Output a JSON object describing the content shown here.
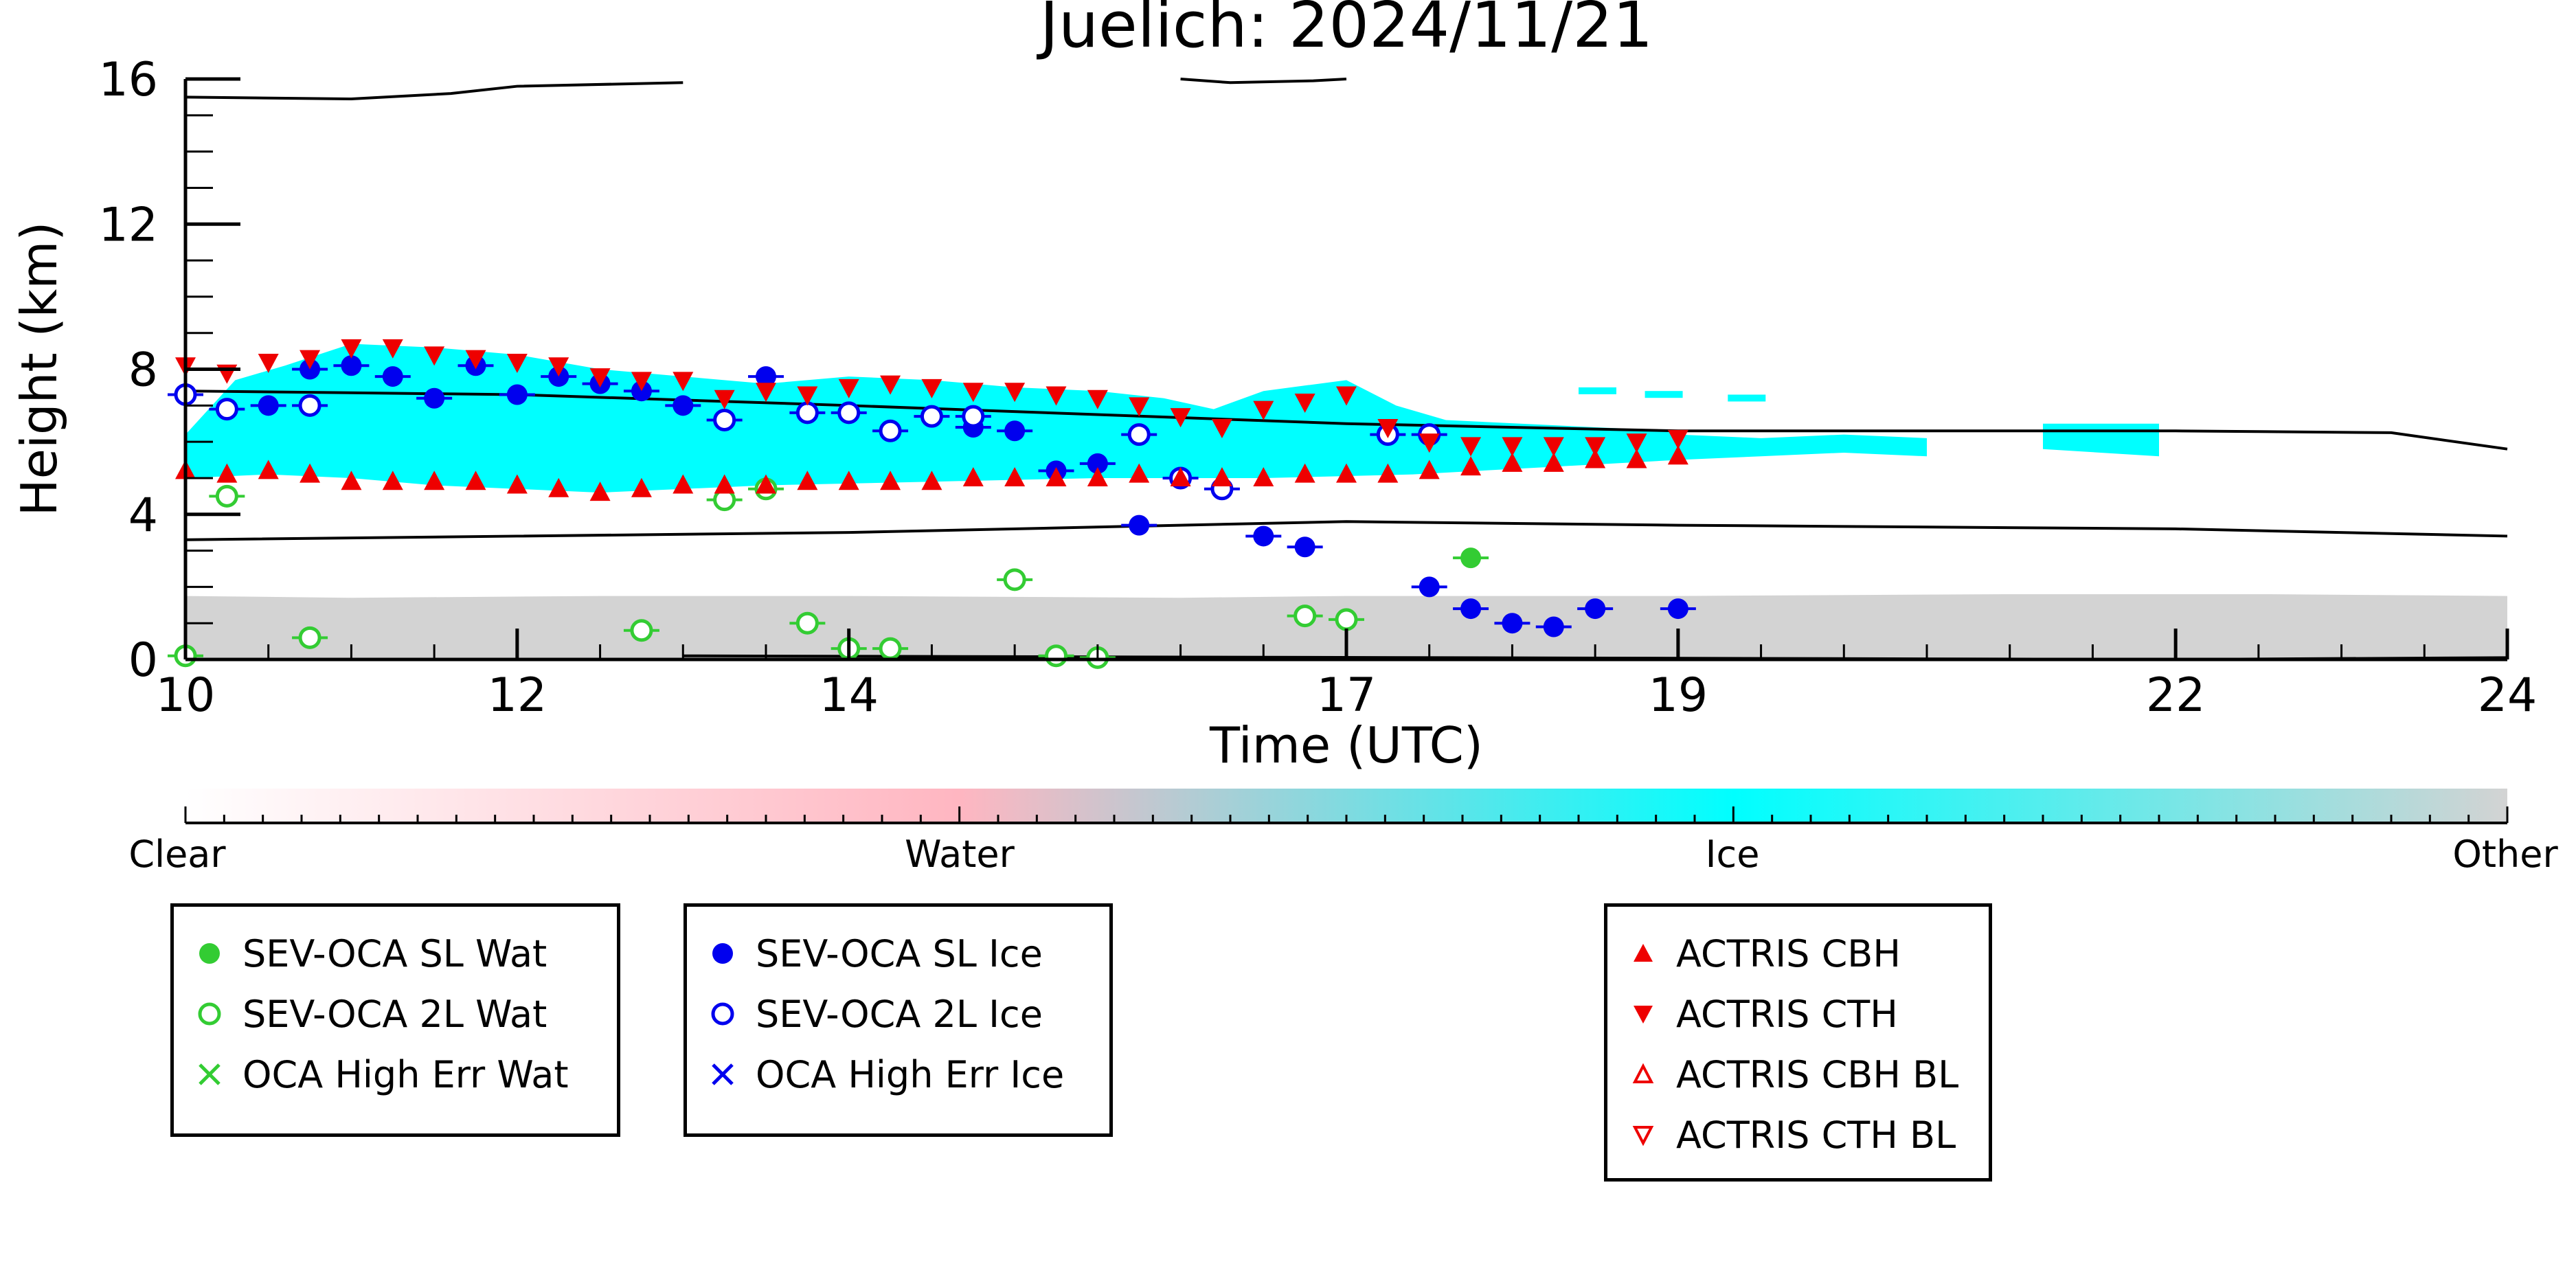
{
  "chart_data": {
    "type": "scatter",
    "title": "Juelich: 2024/11/21",
    "xlabel": "Time (UTC)",
    "ylabel": "Height (km)",
    "xlim": [
      10,
      24
    ],
    "ylim": [
      0,
      16
    ],
    "x_ticks": [
      10,
      12,
      14,
      17,
      19,
      22,
      24
    ],
    "y_ticks": [
      0,
      4,
      8,
      12,
      16
    ],
    "colorbar": {
      "labels": [
        "Clear",
        "Water",
        "Ice",
        "Other"
      ],
      "colors": {
        "clear": "#ffffff",
        "water": "#ffb6c1",
        "ice": "#00ffff",
        "other": "#d3d3d3"
      }
    },
    "colors": {
      "water_marker": "#33cc33",
      "ice_marker": "#0000ee",
      "actris": "#ee0000",
      "ice_cloud": "#00ffff",
      "other": "#d3d3d3"
    },
    "legends": [
      {
        "entries": [
          {
            "label": "SEV-OCA SL Wat",
            "marker": "filled-circle",
            "color": "#33cc33"
          },
          {
            "label": "SEV-OCA 2L Wat",
            "marker": "open-circle",
            "color": "#33cc33"
          },
          {
            "label": "OCA High Err Wat",
            "marker": "x",
            "color": "#33cc33"
          }
        ]
      },
      {
        "entries": [
          {
            "label": "SEV-OCA SL Ice",
            "marker": "filled-circle",
            "color": "#0000ee"
          },
          {
            "label": "SEV-OCA 2L Ice",
            "marker": "open-circle",
            "color": "#0000ee"
          },
          {
            "label": "OCA High Err Ice",
            "marker": "x",
            "color": "#0000ee"
          }
        ]
      },
      {
        "entries": [
          {
            "label": "ACTRIS CBH",
            "marker": "triangle-up",
            "color": "#ee0000"
          },
          {
            "label": "ACTRIS CTH",
            "marker": "triangle-down",
            "color": "#ee0000"
          },
          {
            "label": "ACTRIS CBH BL",
            "marker": "open-triangle-up",
            "color": "#ee0000"
          },
          {
            "label": "ACTRIS CTH BL",
            "marker": "open-triangle-down",
            "color": "#ee0000"
          }
        ]
      }
    ],
    "series": [
      {
        "name": "SEV-OCA SL Ice",
        "marker": "filled-circle",
        "color": "#0000ee",
        "points": [
          [
            10.5,
            7.0
          ],
          [
            10.75,
            8.0
          ],
          [
            11.0,
            8.1
          ],
          [
            11.25,
            7.8
          ],
          [
            11.5,
            7.2
          ],
          [
            11.75,
            8.1
          ],
          [
            12.0,
            7.3
          ],
          [
            12.25,
            7.8
          ],
          [
            12.5,
            7.6
          ],
          [
            12.75,
            7.4
          ],
          [
            13.0,
            7.0
          ],
          [
            13.5,
            7.8
          ],
          [
            14.75,
            6.4
          ],
          [
            15.0,
            6.3
          ],
          [
            15.25,
            5.2
          ],
          [
            15.5,
            5.4
          ],
          [
            15.75,
            3.7
          ],
          [
            16.5,
            3.4
          ],
          [
            16.75,
            3.1
          ],
          [
            17.5,
            2.0
          ],
          [
            17.75,
            1.4
          ],
          [
            18.0,
            1.0
          ],
          [
            18.25,
            0.9
          ],
          [
            18.5,
            1.4
          ],
          [
            19.0,
            1.4
          ]
        ]
      },
      {
        "name": "SEV-OCA 2L Ice",
        "marker": "open-circle",
        "color": "#0000ee",
        "points": [
          [
            10.0,
            7.3
          ],
          [
            10.25,
            6.9
          ],
          [
            10.75,
            7.0
          ],
          [
            13.25,
            6.6
          ],
          [
            13.75,
            6.8
          ],
          [
            14.0,
            6.8
          ],
          [
            14.25,
            6.3
          ],
          [
            14.5,
            6.7
          ],
          [
            14.75,
            6.7
          ],
          [
            15.75,
            6.2
          ],
          [
            16.0,
            5.0
          ],
          [
            16.25,
            4.7
          ],
          [
            17.25,
            6.2
          ],
          [
            17.5,
            6.2
          ]
        ]
      },
      {
        "name": "SEV-OCA SL Wat",
        "marker": "filled-circle",
        "color": "#33cc33",
        "points": [
          [
            17.75,
            2.8
          ]
        ]
      },
      {
        "name": "SEV-OCA 2L Wat",
        "marker": "open-circle",
        "color": "#33cc33",
        "points": [
          [
            10.0,
            0.1
          ],
          [
            10.25,
            4.5
          ],
          [
            10.75,
            0.6
          ],
          [
            12.75,
            0.8
          ],
          [
            13.25,
            4.4
          ],
          [
            13.5,
            4.7
          ],
          [
            13.75,
            1.0
          ],
          [
            14.0,
            0.3
          ],
          [
            14.25,
            0.3
          ],
          [
            15.0,
            2.2
          ],
          [
            15.25,
            0.1
          ],
          [
            15.5,
            0.05
          ],
          [
            16.75,
            1.2
          ],
          [
            17.0,
            1.1
          ]
        ]
      },
      {
        "name": "ACTRIS CBH",
        "marker": "triangle-up",
        "color": "#ee0000",
        "points": [
          [
            10.0,
            5.2
          ],
          [
            10.25,
            5.1
          ],
          [
            10.5,
            5.2
          ],
          [
            10.75,
            5.1
          ],
          [
            11.0,
            4.9
          ],
          [
            11.25,
            4.9
          ],
          [
            11.5,
            4.9
          ],
          [
            11.75,
            4.9
          ],
          [
            12.0,
            4.8
          ],
          [
            12.25,
            4.7
          ],
          [
            12.5,
            4.6
          ],
          [
            12.75,
            4.7
          ],
          [
            13.0,
            4.8
          ],
          [
            13.25,
            4.8
          ],
          [
            13.5,
            4.8
          ],
          [
            13.75,
            4.9
          ],
          [
            14.0,
            4.9
          ],
          [
            14.25,
            4.9
          ],
          [
            14.5,
            4.9
          ],
          [
            14.75,
            5.0
          ],
          [
            15.0,
            5.0
          ],
          [
            15.25,
            5.0
          ],
          [
            15.5,
            5.0
          ],
          [
            15.75,
            5.1
          ],
          [
            16.0,
            5.0
          ],
          [
            16.25,
            5.0
          ],
          [
            16.5,
            5.0
          ],
          [
            16.75,
            5.1
          ],
          [
            17.0,
            5.1
          ],
          [
            17.25,
            5.1
          ],
          [
            17.5,
            5.2
          ],
          [
            17.75,
            5.3
          ],
          [
            18.0,
            5.4
          ],
          [
            18.25,
            5.4
          ],
          [
            18.5,
            5.5
          ],
          [
            18.75,
            5.5
          ],
          [
            19.0,
            5.6
          ]
        ]
      },
      {
        "name": "ACTRIS CTH",
        "marker": "triangle-down",
        "color": "#ee0000",
        "points": [
          [
            10.0,
            8.1
          ],
          [
            10.25,
            7.9
          ],
          [
            10.5,
            8.2
          ],
          [
            10.75,
            8.3
          ],
          [
            11.0,
            8.6
          ],
          [
            11.25,
            8.6
          ],
          [
            11.5,
            8.4
          ],
          [
            11.75,
            8.3
          ],
          [
            12.0,
            8.2
          ],
          [
            12.25,
            8.1
          ],
          [
            12.5,
            7.8
          ],
          [
            12.75,
            7.7
          ],
          [
            13.0,
            7.7
          ],
          [
            13.25,
            7.2
          ],
          [
            13.5,
            7.4
          ],
          [
            13.75,
            7.3
          ],
          [
            14.0,
            7.5
          ],
          [
            14.25,
            7.6
          ],
          [
            14.5,
            7.5
          ],
          [
            14.75,
            7.4
          ],
          [
            15.0,
            7.4
          ],
          [
            15.25,
            7.3
          ],
          [
            15.5,
            7.2
          ],
          [
            15.75,
            7.0
          ],
          [
            16.0,
            6.7
          ],
          [
            16.25,
            6.4
          ],
          [
            16.5,
            6.9
          ],
          [
            16.75,
            7.1
          ],
          [
            17.0,
            7.3
          ],
          [
            17.25,
            6.4
          ],
          [
            17.5,
            6.0
          ],
          [
            17.75,
            5.9
          ],
          [
            18.0,
            5.9
          ],
          [
            18.25,
            5.9
          ],
          [
            18.5,
            5.9
          ],
          [
            18.75,
            6.0
          ],
          [
            19.0,
            6.1
          ]
        ]
      }
    ],
    "lines": [
      {
        "color": "#000000",
        "points": [
          [
            10,
            7.4
          ],
          [
            12,
            7.3
          ],
          [
            14,
            7.0
          ],
          [
            17,
            6.5
          ],
          [
            19,
            6.3
          ],
          [
            22,
            6.3
          ],
          [
            23.3,
            6.25
          ],
          [
            24,
            5.8
          ]
        ]
      },
      {
        "color": "#000000",
        "points": [
          [
            10,
            3.3
          ],
          [
            12,
            3.4
          ],
          [
            14,
            3.5
          ],
          [
            17,
            3.8
          ],
          [
            19,
            3.7
          ],
          [
            22,
            3.6
          ],
          [
            24,
            3.4
          ]
        ]
      },
      {
        "color": "#000000",
        "points": [
          [
            10,
            15.5
          ],
          [
            11,
            15.45
          ],
          [
            11.6,
            15.6
          ],
          [
            12,
            15.8
          ],
          [
            13,
            15.9
          ]
        ]
      },
      {
        "color": "#000000",
        "points": [
          [
            16.0,
            16.0
          ],
          [
            16.3,
            15.9
          ],
          [
            16.8,
            15.95
          ],
          [
            17.0,
            16.0
          ]
        ]
      },
      {
        "color": "#000000",
        "points": [
          [
            13,
            0.1
          ],
          [
            22,
            0.0
          ],
          [
            24,
            0.05
          ]
        ]
      }
    ]
  }
}
